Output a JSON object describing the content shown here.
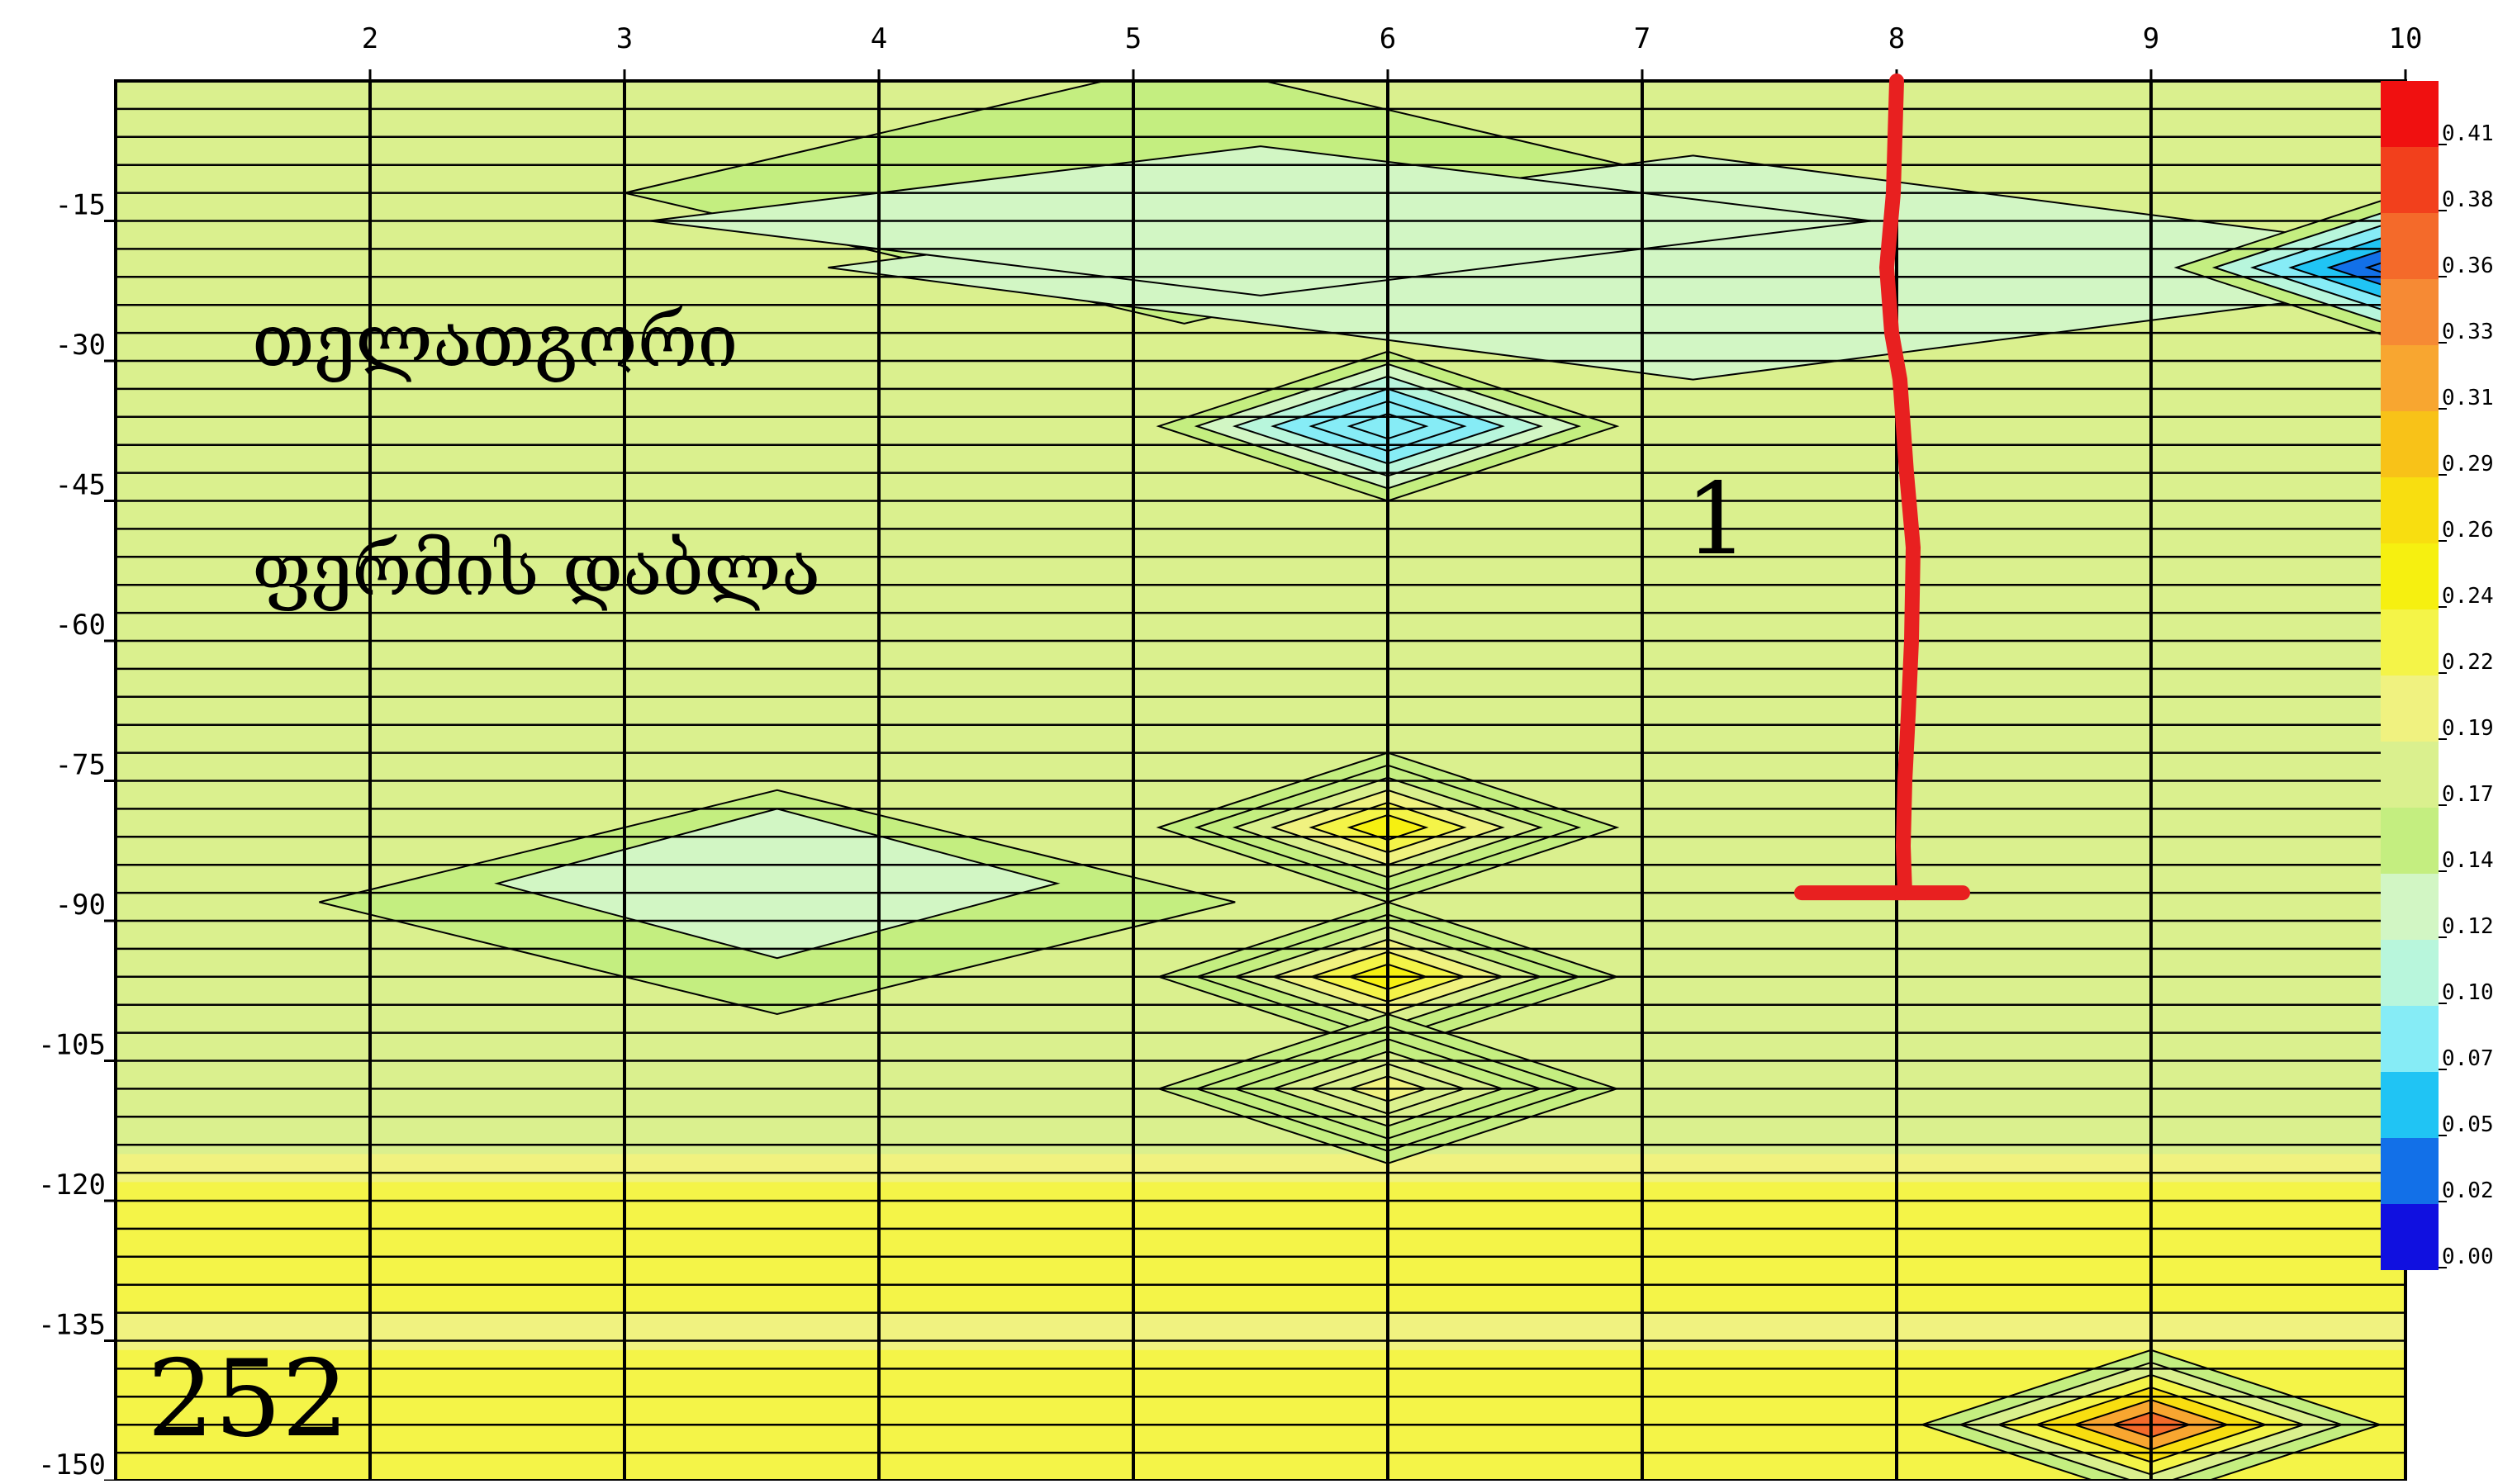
{
  "chart_data": {
    "type": "heatmap",
    "title": "",
    "xlabel": "",
    "ylabel": "",
    "x_ticks": [
      2,
      3,
      4,
      5,
      6,
      7,
      8,
      9,
      10
    ],
    "y_ticks": [
      -15,
      -30,
      -45,
      -60,
      -75,
      -90,
      -105,
      -120,
      -135,
      -150
    ],
    "xlim": [
      1,
      10
    ],
    "ylim": [
      -150,
      0
    ],
    "grid": true,
    "colorscale": {
      "values": [
        0.41,
        0.38,
        0.36,
        0.33,
        0.31,
        0.29,
        0.26,
        0.24,
        0.22,
        0.19,
        0.17,
        0.14,
        0.12,
        0.1,
        0.07,
        0.05,
        0.02,
        0.0
      ],
      "labels": [
        "0.41",
        "0.38",
        "0.36",
        "0.33",
        "0.31",
        "0.29",
        "0.26",
        "0.24",
        "0.22",
        "0.19",
        "0.17",
        "0.14",
        "0.12",
        "0.10",
        "0.07",
        "0.05",
        "0.02",
        "0.00"
      ],
      "colors": [
        "#f01010",
        "#f2401c",
        "#f46a2a",
        "#f68a34",
        "#f8a630",
        "#f8c218",
        "#f8de10",
        "#f6f010",
        "#f4f448",
        "#f0f280",
        "#daf08e",
        "#c4ee80",
        "#d2f6c4",
        "#b8f6dc",
        "#86ecf6",
        "#20c4f4",
        "#1270e8",
        "#1010e0"
      ],
      "position": "right"
    },
    "contour_features": [
      {
        "x": 6,
        "y": -80,
        "value": 0.24
      },
      {
        "x": 6,
        "y": -96,
        "value": 0.24
      },
      {
        "x": 6,
        "y": -108,
        "value": 0.19
      },
      {
        "x": 9,
        "y": -144,
        "value": 0.36
      },
      {
        "x": 10,
        "y": -20,
        "value": 0.02
      },
      {
        "x": 6,
        "y": -37,
        "value": 0.07
      }
    ],
    "annotations": {
      "text_line_1": "თელათგორი",
      "text_line_2": "ფერმის დაბლა",
      "profile_number": "1",
      "page_number": "252",
      "marker_color": "#e82020",
      "marker_x": 8,
      "marker_bottom_y": -87
    }
  }
}
